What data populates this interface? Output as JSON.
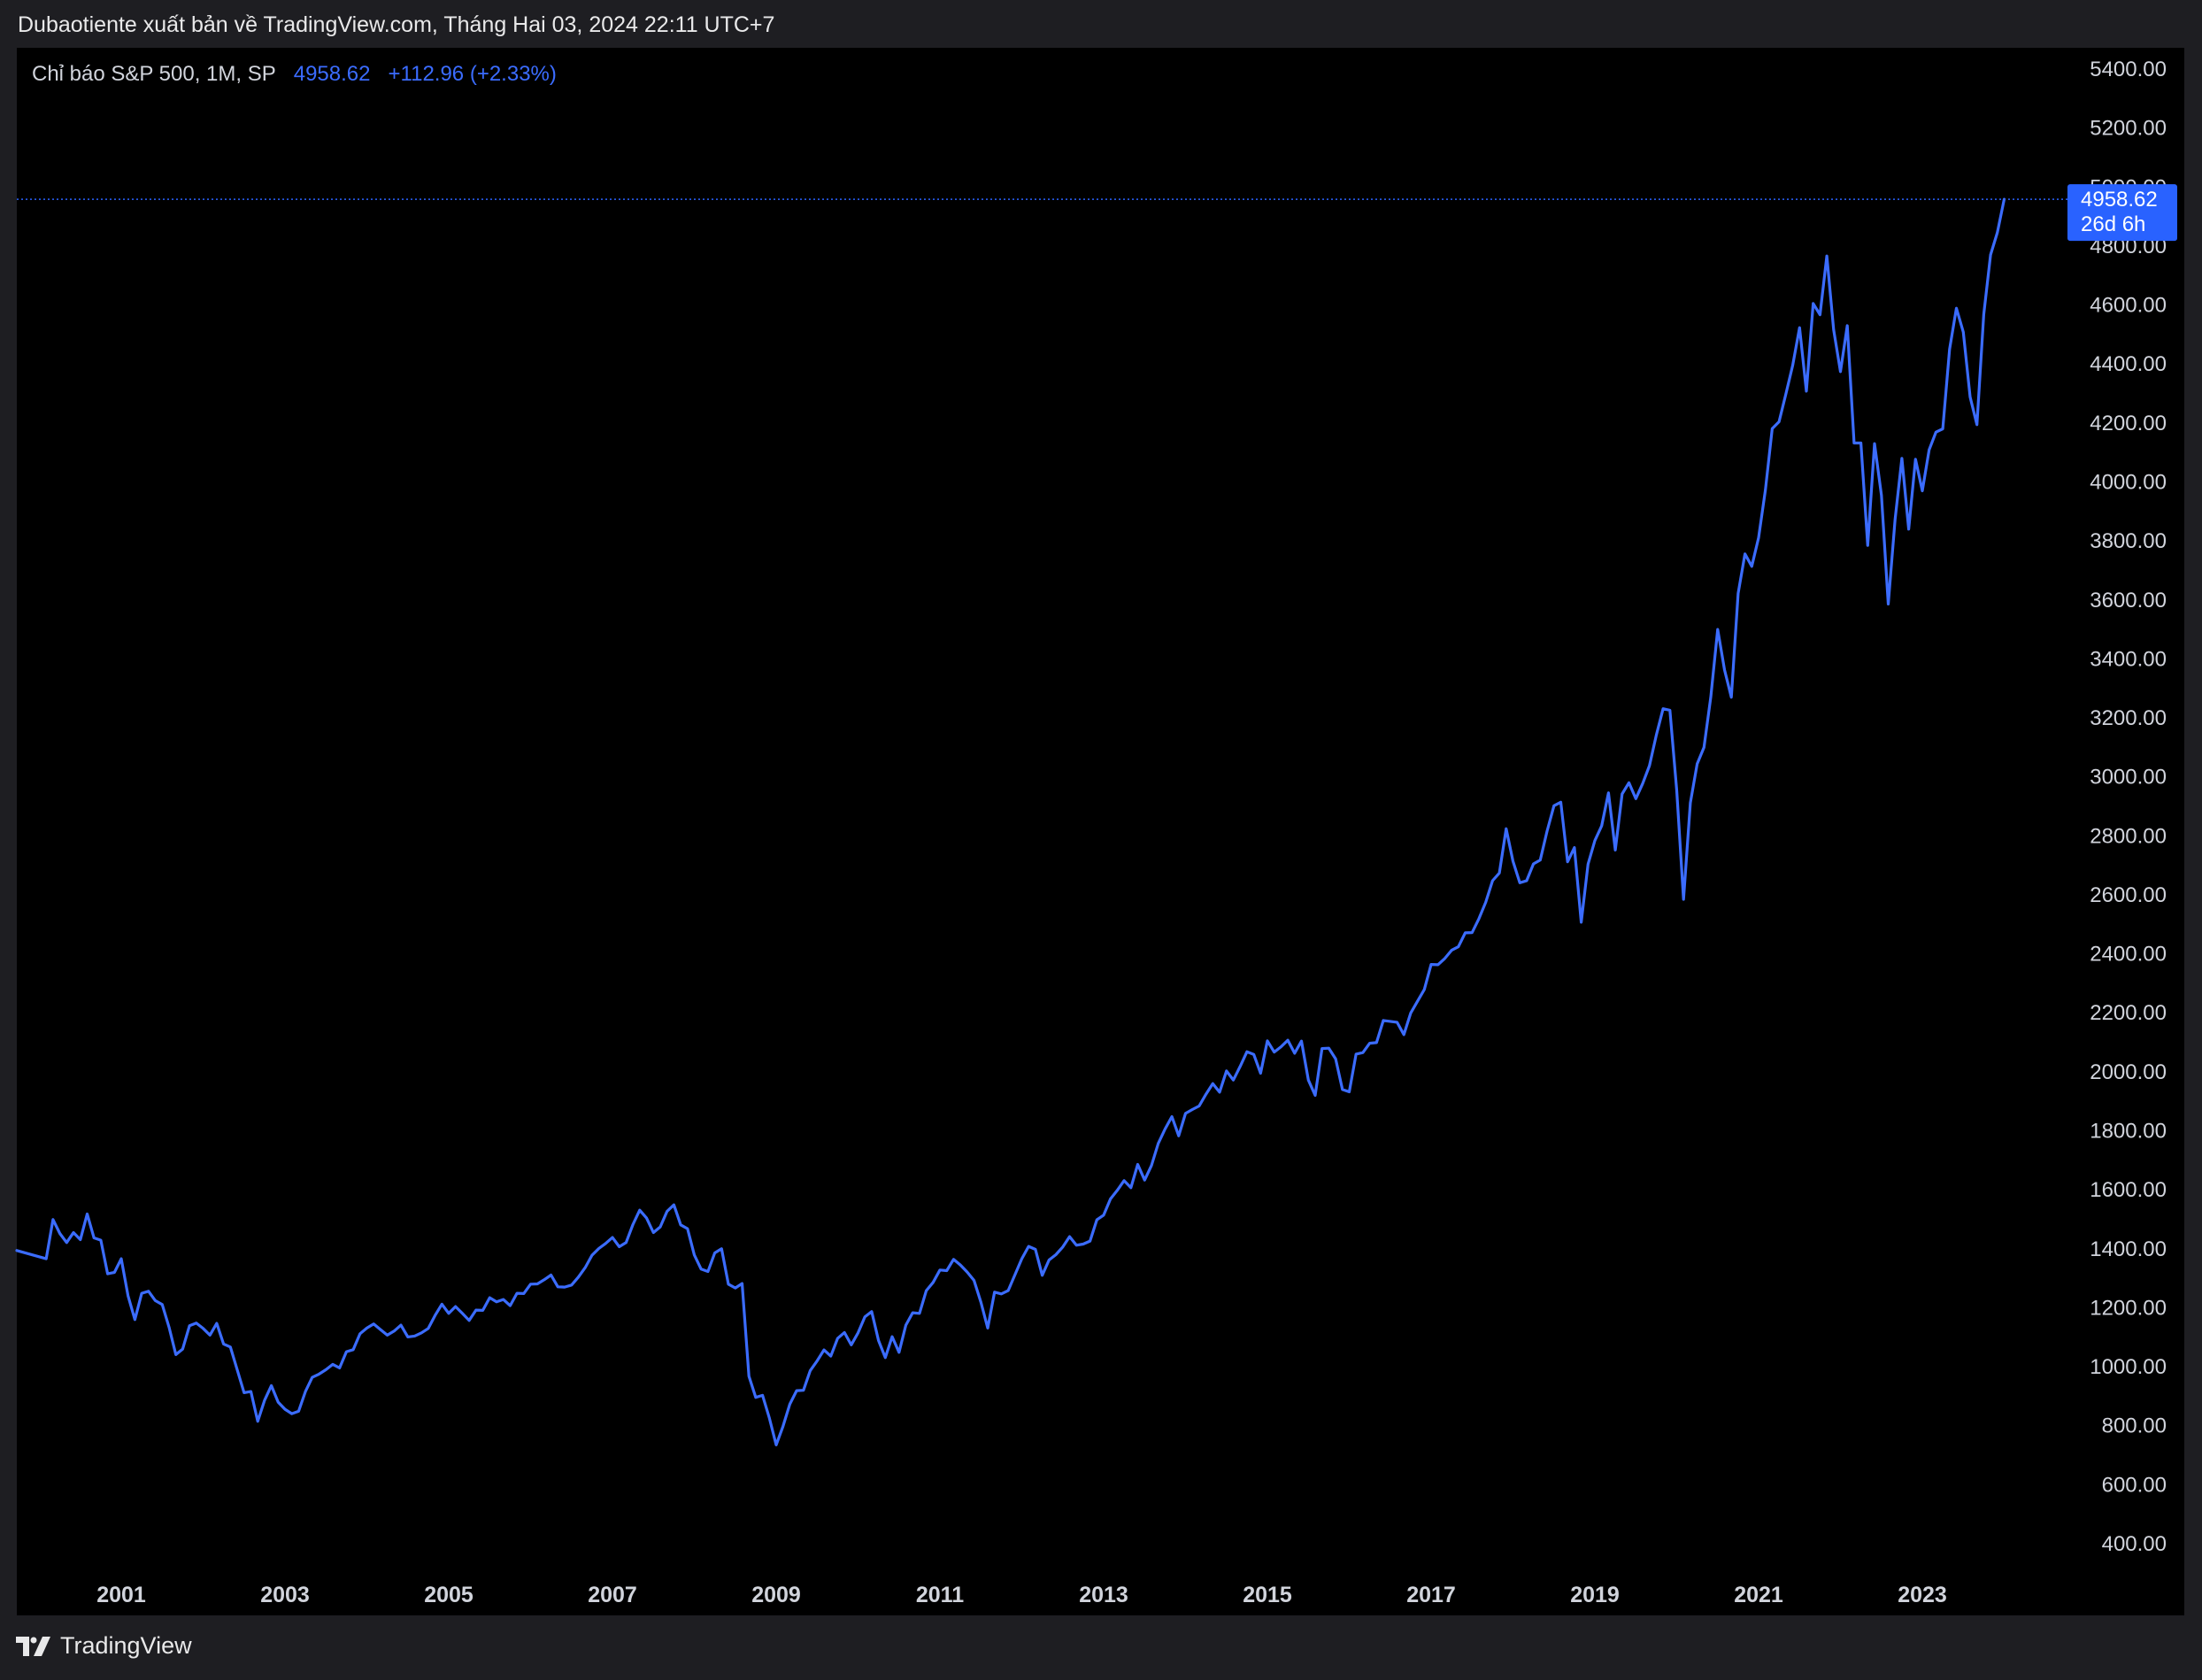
{
  "header": {
    "caption": "Dubaotiente xuất bản về TradingView.com, Tháng Hai 03, 2024 22:11 UTC+7"
  },
  "legend": {
    "symbol": "Chỉ báo S&P 500, 1M, SP",
    "last_value": "4958.62",
    "change": "+112.96 (+2.33%)"
  },
  "price_tag": {
    "value": "4958.62",
    "countdown": "26d 6h"
  },
  "footer": {
    "brand": "TradingView",
    "logo_icon": "tradingview-logo-icon"
  },
  "colors": {
    "line": "#3b6cff",
    "background": "#000000",
    "frame": "#1e1e22",
    "text": "#d1d4dc",
    "tag": "#2962ff"
  },
  "chart_data": {
    "type": "line",
    "title": "Chỉ báo S&P 500, 1M, SP",
    "xlabel": "",
    "ylabel": "",
    "ylim": [
      250,
      5500
    ],
    "x_ticks": [
      "2001",
      "2003",
      "2005",
      "2007",
      "2009",
      "2011",
      "2013",
      "2015",
      "2017",
      "2019",
      "2021",
      "2023"
    ],
    "y_ticks": [
      "400.00",
      "600.00",
      "800.00",
      "1000.00",
      "1200.00",
      "1400.00",
      "1600.00",
      "1800.00",
      "2000.00",
      "2200.00",
      "2400.00",
      "2600.00",
      "2800.00",
      "3000.00",
      "3200.00",
      "3400.00",
      "3600.00",
      "3800.00",
      "4000.00",
      "4200.00",
      "4400.00",
      "4600.00",
      "4800.00",
      "5000.00",
      "5200.00",
      "5400.00"
    ],
    "last_value": 4958.62,
    "grid": false,
    "series": [
      {
        "start": "2000-01",
        "frequency": "monthly",
        "values": [
          1394,
          1366,
          1499,
          1452,
          1421,
          1455,
          1431,
          1518,
          1437,
          1429,
          1315,
          1320,
          1366,
          1240,
          1160,
          1249,
          1256,
          1224,
          1211,
          1134,
          1041,
          1060,
          1139,
          1148,
          1130,
          1107,
          1147,
          1077,
          1067,
          990,
          912,
          916,
          815,
          886,
          936,
          880,
          856,
          841,
          849,
          916,
          964,
          975,
          990,
          1008,
          996,
          1051,
          1058,
          1112,
          1131,
          1145,
          1126,
          1107,
          1121,
          1141,
          1101,
          1104,
          1115,
          1130,
          1174,
          1212,
          1181,
          1204,
          1181,
          1157,
          1192,
          1191,
          1234,
          1220,
          1228,
          1207,
          1249,
          1248,
          1280,
          1281,
          1295,
          1311,
          1271,
          1270,
          1277,
          1304,
          1336,
          1378,
          1401,
          1418,
          1438,
          1407,
          1421,
          1482,
          1531,
          1504,
          1455,
          1474,
          1527,
          1549,
          1481,
          1468,
          1379,
          1331,
          1323,
          1386,
          1400,
          1280,
          1267,
          1282,
          968,
          896,
          903,
          826,
          735,
          798,
          873,
          919,
          920,
          987,
          1020,
          1057,
          1036,
          1096,
          1116,
          1074,
          1115,
          1169,
          1187,
          1089,
          1031,
          1102,
          1049,
          1141,
          1183,
          1181,
          1258,
          1286,
          1328,
          1326,
          1364,
          1345,
          1321,
          1293,
          1219,
          1131,
          1253,
          1247,
          1258,
          1312,
          1366,
          1408,
          1398,
          1310,
          1362,
          1380,
          1406,
          1441,
          1412,
          1416,
          1426,
          1498,
          1514,
          1569,
          1598,
          1631,
          1607,
          1686,
          1633,
          1682,
          1757,
          1806,
          1848,
          1783,
          1859,
          1872,
          1884,
          1924,
          1960,
          1931,
          2003,
          1972,
          2018,
          2068,
          2059,
          1995,
          2105,
          2067,
          2085,
          2107,
          2063,
          2104,
          1972,
          1920,
          2079,
          2080,
          2044,
          1940,
          1932,
          2060,
          2065,
          2097,
          2099,
          2174,
          2171,
          2168,
          2126,
          2199,
          2239,
          2279,
          2364,
          2363,
          2384,
          2412,
          2424,
          2471,
          2472,
          2519,
          2575,
          2648,
          2674,
          2824,
          2714,
          2641,
          2648,
          2705,
          2718,
          2816,
          2902,
          2914,
          2712,
          2760,
          2507,
          2704,
          2784,
          2834,
          2946,
          2752,
          2942,
          2980,
          2926,
          2977,
          3038,
          3141,
          3231,
          3226,
          2954,
          2585,
          2912,
          3044,
          3100,
          3271,
          3500,
          3363,
          3270,
          3622,
          3756,
          3714,
          3811,
          3973,
          4181,
          4204,
          4298,
          4395,
          4523,
          4308,
          4605,
          4567,
          4766,
          4516,
          4374,
          4530,
          4132,
          4132,
          3785,
          4130,
          3955,
          3586,
          3872,
          4080,
          3840,
          4077,
          3970,
          4109,
          4169,
          4180,
          4450,
          4589,
          4508,
          4288,
          4194,
          4568,
          4770,
          4846,
          4958.62
        ]
      }
    ]
  }
}
